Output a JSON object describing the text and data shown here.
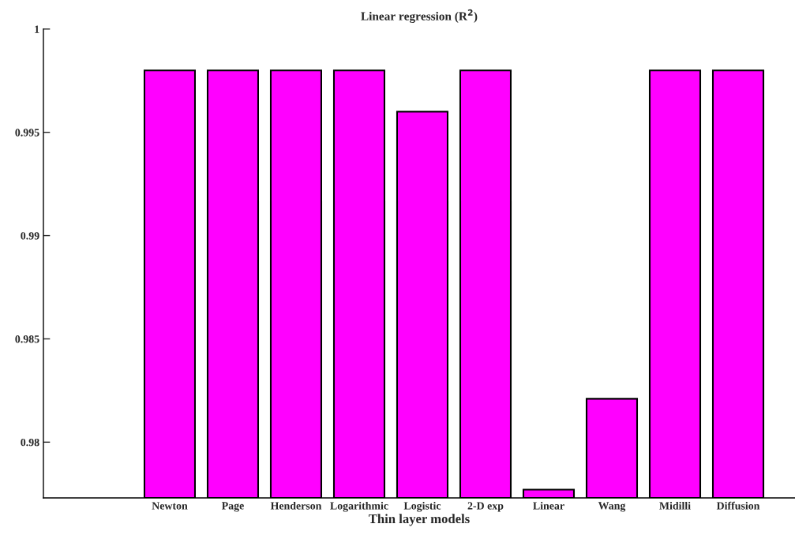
{
  "chart_data": {
    "type": "bar",
    "title": "Linear regression (R$^{2}$)",
    "xlabel": "Thin layer models",
    "categories": [
      null,
      "Newton",
      "Page",
      "Henderson",
      "Logarithmic",
      "Logistic",
      "2-D exp",
      "Linear",
      "Wang",
      "Midilli",
      "Diffusion"
    ],
    "values": [
      null,
      0.998,
      0.998,
      0.998,
      0.998,
      0.996,
      0.998,
      0.9777,
      0.9821,
      0.998,
      0.998
    ],
    "color": "#ff00ff",
    "ylim": [
      0.9773,
      1.0
    ],
    "yticks": [
      {
        "value": 0.98,
        "label": "0.98"
      },
      {
        "value": 0.985,
        "label": "0.985"
      },
      {
        "value": 0.99,
        "label": "0.99"
      },
      {
        "value": 0.995,
        "label": "0.995"
      },
      {
        "value": 1,
        "label": "1"
      }
    ],
    "grid": false
  }
}
